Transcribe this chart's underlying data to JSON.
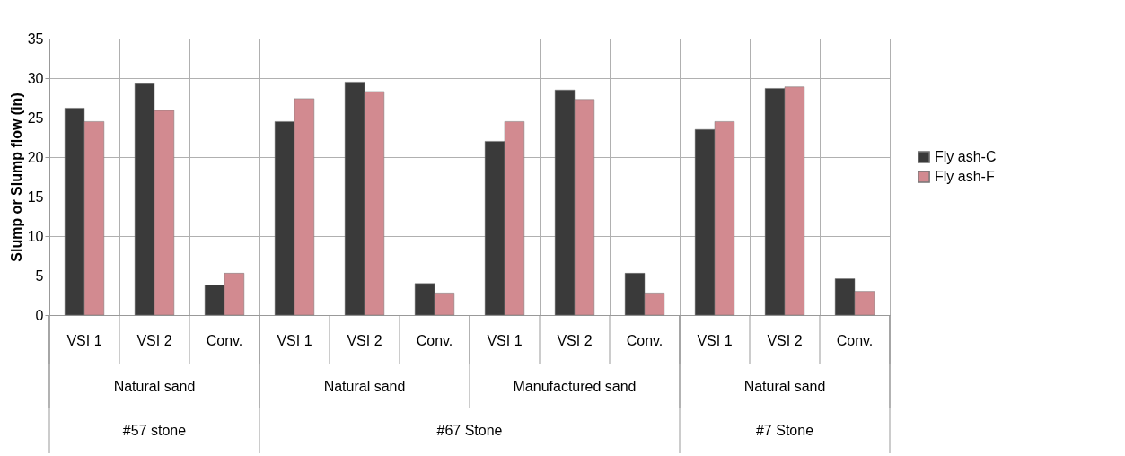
{
  "chart_data": {
    "type": "bar",
    "ylabel": "Slump or Slump  flow (in)",
    "categories": [
      "VSI 1",
      "VSI 2",
      "Conv.",
      "VSI 1",
      "VSI 2",
      "Conv.",
      "VSI 1",
      "VSI 2",
      "Conv.",
      "VSI 1",
      "VSI 2",
      "Conv."
    ],
    "series": [
      {
        "name": "Fly ash-C",
        "color": "#3a3a3a",
        "values": [
          26.2,
          29.3,
          3.8,
          24.5,
          29.5,
          4.0,
          22.0,
          28.5,
          5.3,
          23.5,
          28.7,
          4.6
        ]
      },
      {
        "name": "Fly ash-F",
        "color": "#d28a90",
        "values": [
          24.5,
          25.9,
          5.3,
          27.4,
          28.3,
          2.8,
          24.5,
          27.3,
          2.8,
          24.5,
          28.9,
          3.0
        ]
      }
    ],
    "annotations": [
      "Natural sand",
      "Natural sand",
      "Manufactured sand",
      "Natural sand",
      "#57 stone",
      "#67 Stone",
      "#7 Stone"
    ],
    "ylim": [
      0,
      35
    ],
    "yticks": [
      0,
      5,
      10,
      15,
      20,
      25,
      30,
      35
    ],
    "grid": true,
    "legend": "right"
  }
}
